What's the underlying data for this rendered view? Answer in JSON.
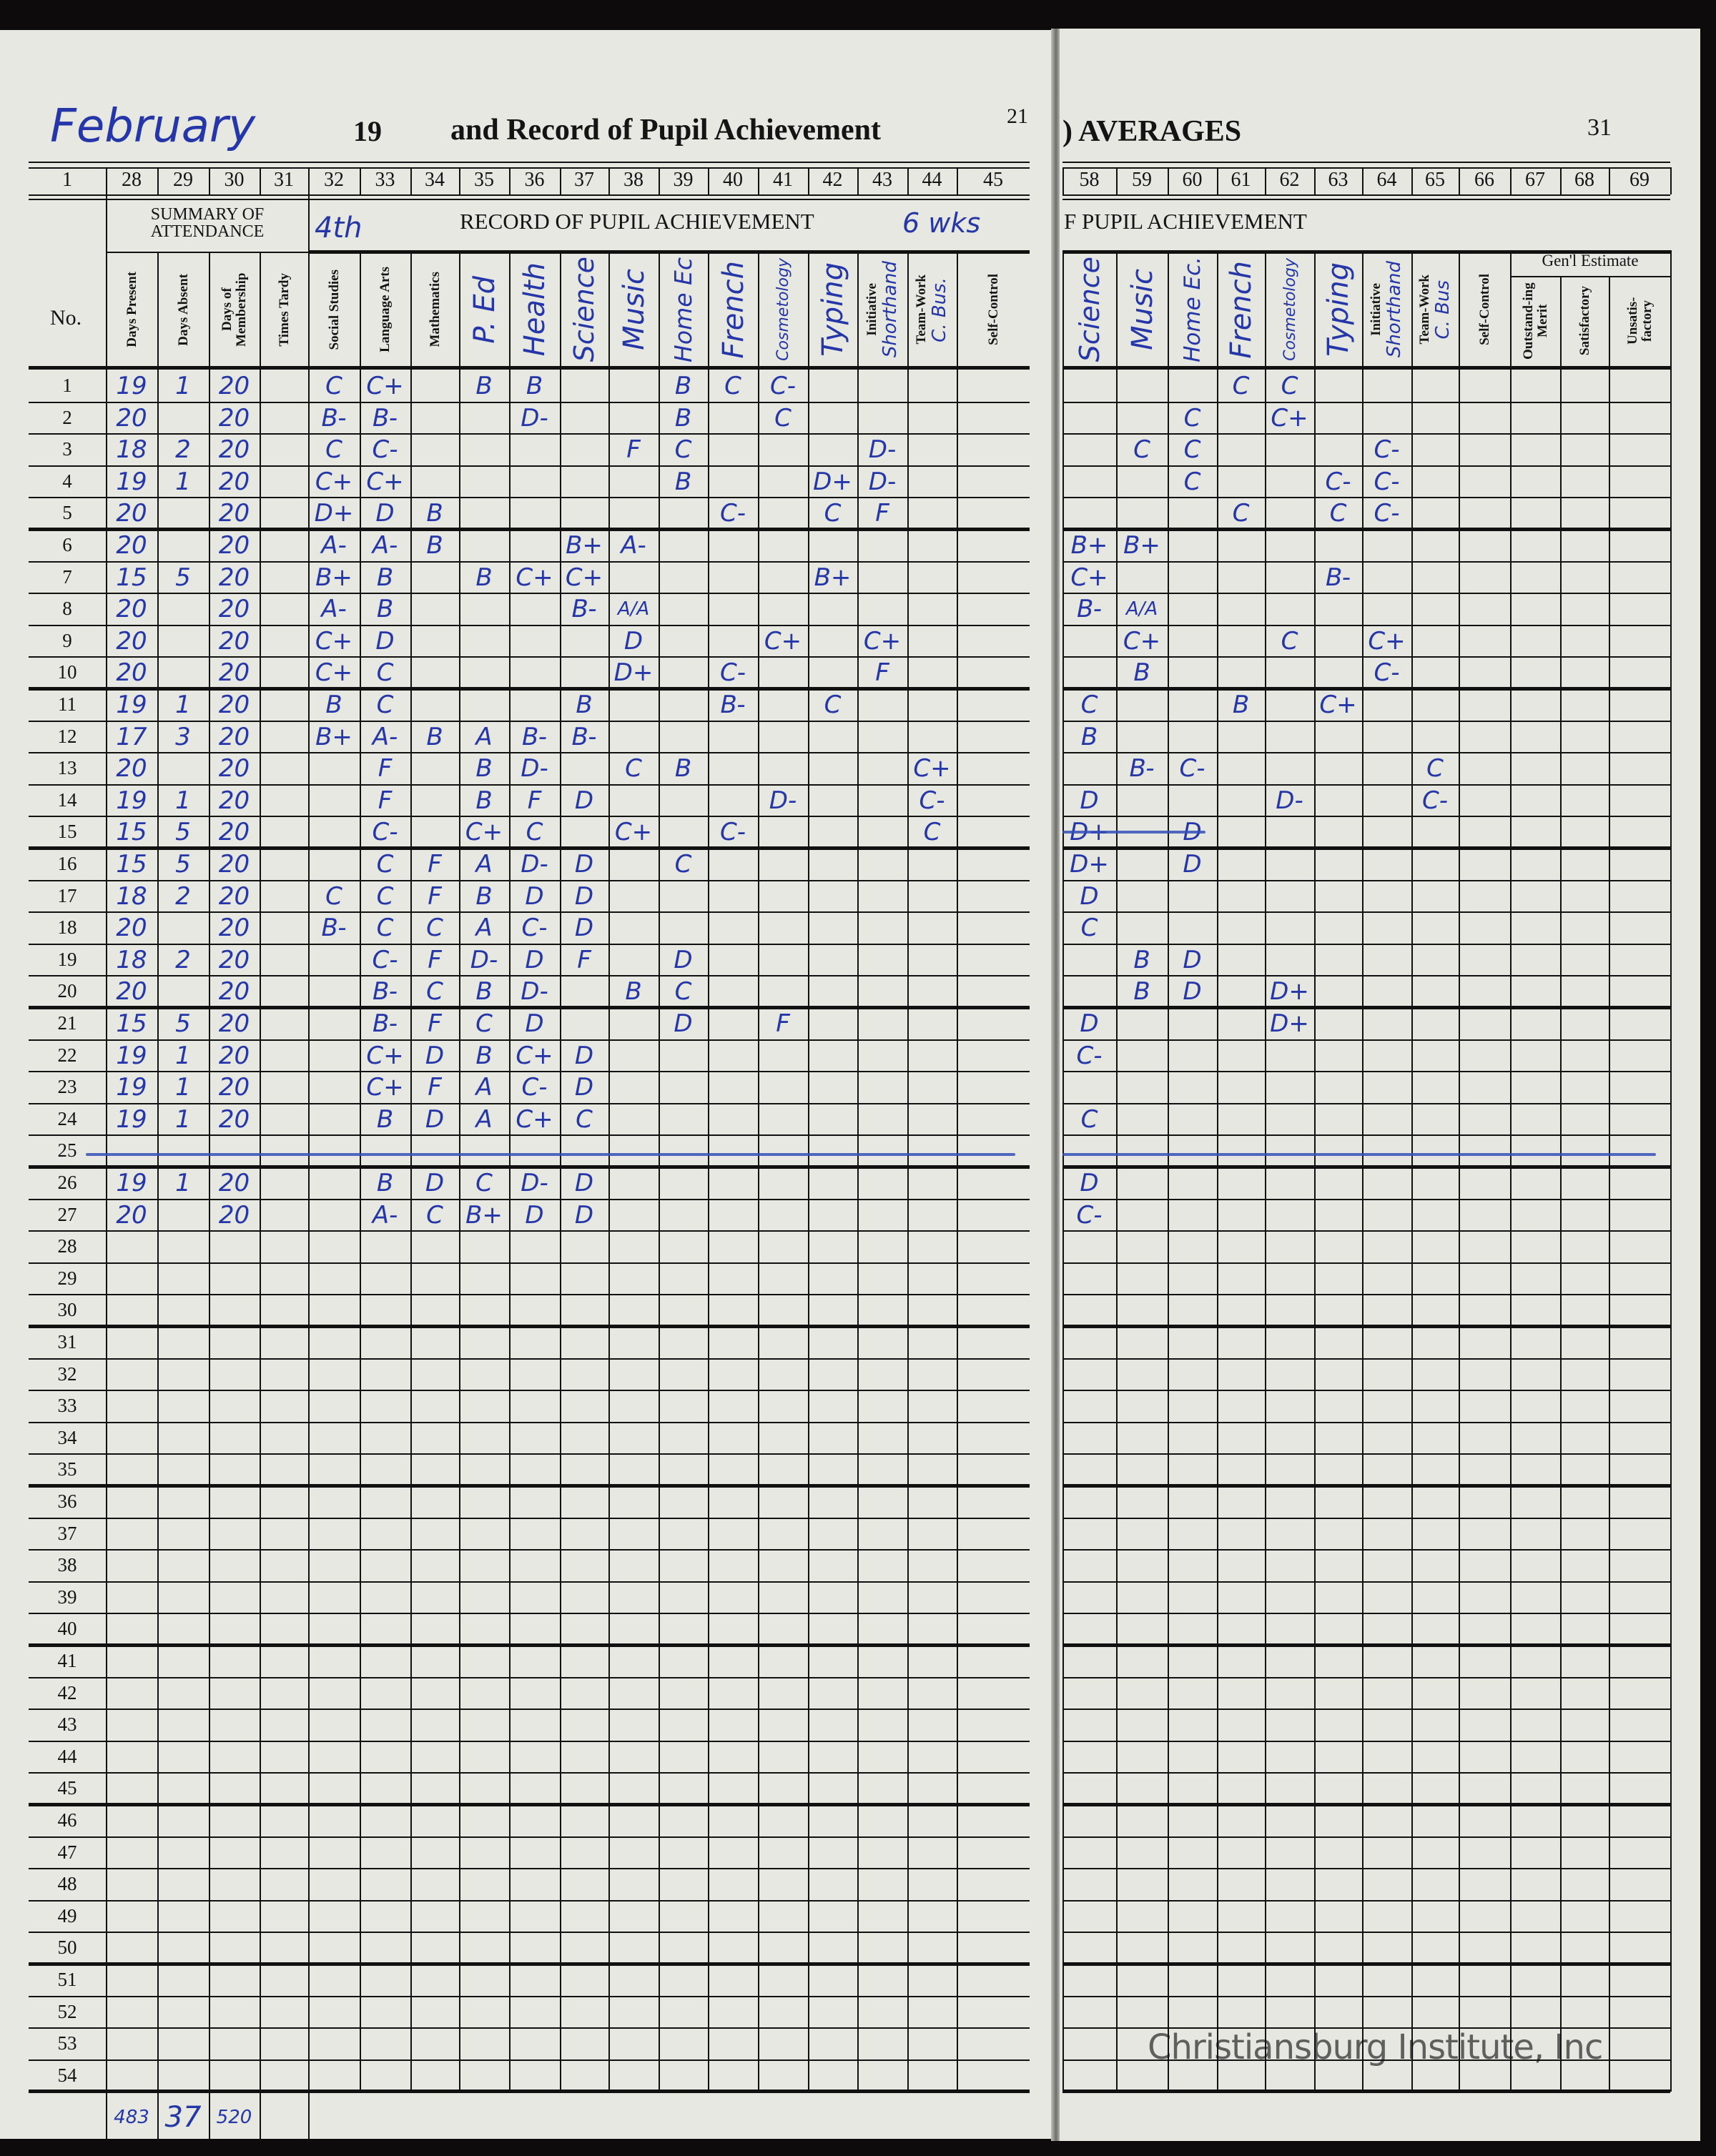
{
  "left_page": {
    "month_handwritten": "February",
    "year_prefix": "19",
    "title": "and Record of Pupil Achievement",
    "page_mark": "21",
    "column_numbers": [
      "1",
      "28",
      "29",
      "30",
      "31",
      "32",
      "33",
      "34",
      "35",
      "36",
      "37",
      "38",
      "39",
      "40",
      "41",
      "42",
      "43",
      "44",
      "45"
    ],
    "summary_header": "SUMMARY OF ATTENDANCE",
    "record_header": "RECORD OF PUPIL ACHIEVEMENT",
    "period_handwritten": "4th",
    "weeks_handwritten": "6 wks",
    "no_label": "No.",
    "columns": [
      {
        "printed": "Days Present"
      },
      {
        "printed": "Days Absent"
      },
      {
        "printed": "Days of Membership"
      },
      {
        "printed": "Times Tardy"
      },
      {
        "printed": "Social Studies"
      },
      {
        "printed": "Language Arts"
      },
      {
        "printed": "Mathematics"
      },
      {
        "handwritten": "P. Ed"
      },
      {
        "handwritten": "Health"
      },
      {
        "handwritten": "Science"
      },
      {
        "handwritten": "Music"
      },
      {
        "handwritten": "Home Ec"
      },
      {
        "handwritten": "French"
      },
      {
        "handwritten": "Cosmetology"
      },
      {
        "handwritten": "Typing"
      },
      {
        "printed": "Initiative",
        "handwritten": "Shorthand"
      },
      {
        "printed": "Team-Work",
        "handwritten": "C. Bus."
      },
      {
        "printed": "Self-Control"
      }
    ],
    "rows": [
      [
        "19",
        "1",
        "20",
        "",
        "C",
        "C+",
        "",
        "B",
        "B",
        "",
        "",
        "B",
        "C",
        "C-",
        "",
        "",
        "",
        ""
      ],
      [
        "20",
        "",
        "20",
        "",
        "B-",
        "B-",
        "",
        "",
        "D-",
        "",
        "",
        "B",
        "",
        "C",
        "",
        "",
        "",
        ""
      ],
      [
        "18",
        "2",
        "20",
        "",
        "C",
        "C-",
        "",
        "",
        "",
        "",
        "F",
        "C",
        "",
        "",
        "",
        "D-",
        "",
        ""
      ],
      [
        "19",
        "1",
        "20",
        "",
        "C+",
        "C+",
        "",
        "",
        "",
        "",
        "",
        "B",
        "",
        "",
        "D+",
        "D-",
        "",
        ""
      ],
      [
        "20",
        "",
        "20",
        "",
        "D+",
        "D",
        "B",
        "",
        "",
        "",
        "",
        "",
        "C-",
        "",
        "C",
        "F",
        "",
        ""
      ],
      [
        "20",
        "",
        "20",
        "",
        "A-",
        "A-",
        "B",
        "",
        "",
        "B+",
        "A-",
        "",
        "",
        "",
        "",
        "",
        "",
        ""
      ],
      [
        "15",
        "5",
        "20",
        "",
        "B+",
        "B",
        "",
        "B",
        "C+",
        "C+",
        "",
        "",
        "",
        "",
        "B+",
        "",
        "",
        ""
      ],
      [
        "20",
        "",
        "20",
        "",
        "A-",
        "B",
        "",
        "",
        "",
        "B-",
        "A/A",
        "",
        "",
        "",
        "",
        "",
        "",
        ""
      ],
      [
        "20",
        "",
        "20",
        "",
        "C+",
        "D",
        "",
        "",
        "",
        "",
        "D",
        "",
        "",
        "C+",
        "",
        "C+",
        "",
        ""
      ],
      [
        "20",
        "",
        "20",
        "",
        "C+",
        "C",
        "",
        "",
        "",
        "",
        "D+",
        "",
        "C-",
        "",
        "",
        "F",
        "",
        ""
      ],
      [
        "19",
        "1",
        "20",
        "",
        "B",
        "C",
        "",
        "",
        "",
        "B",
        "",
        "",
        "B-",
        "",
        "C",
        "",
        "",
        ""
      ],
      [
        "17",
        "3",
        "20",
        "",
        "B+",
        "A-",
        "B",
        "A",
        "B-",
        "B-",
        "",
        "",
        "",
        "",
        "",
        "",
        "",
        ""
      ],
      [
        "20",
        "",
        "20",
        "",
        "",
        "F",
        "",
        "B",
        "D-",
        "",
        "C",
        "B",
        "",
        "",
        "",
        "",
        "C+",
        ""
      ],
      [
        "19",
        "1",
        "20",
        "",
        "",
        "F",
        "",
        "B",
        "F",
        "D",
        "",
        "",
        "",
        "D-",
        "",
        "",
        "C-",
        ""
      ],
      [
        "15",
        "5",
        "20",
        "",
        "",
        "C-",
        "",
        "C+",
        "C",
        "",
        "C+",
        "",
        "C-",
        "",
        "",
        "",
        "C",
        ""
      ],
      [
        "15",
        "5",
        "20",
        "",
        "",
        "C",
        "F",
        "A",
        "D-",
        "D",
        "",
        "C",
        "",
        "",
        "",
        "",
        "",
        ""
      ],
      [
        "18",
        "2",
        "20",
        "",
        "C",
        "C",
        "F",
        "B",
        "D",
        "D",
        "",
        "",
        "",
        "",
        "",
        "",
        "",
        ""
      ],
      [
        "20",
        "",
        "20",
        "",
        "B-",
        "C",
        "C",
        "A",
        "C-",
        "D",
        "",
        "",
        "",
        "",
        "",
        "",
        "",
        ""
      ],
      [
        "18",
        "2",
        "20",
        "",
        "",
        "C-",
        "F",
        "D-",
        "D",
        "F",
        "",
        "D",
        "",
        "",
        "",
        "",
        "",
        ""
      ],
      [
        "20",
        "",
        "20",
        "",
        "",
        "B-",
        "C",
        "B",
        "D-",
        "",
        "B",
        "C",
        "",
        "",
        "",
        "",
        "",
        ""
      ],
      [
        "15",
        "5",
        "20",
        "",
        "",
        "B-",
        "F",
        "C",
        "D",
        "",
        "",
        "D",
        "",
        "F",
        "",
        "",
        "",
        ""
      ],
      [
        "19",
        "1",
        "20",
        "",
        "",
        "C+",
        "D",
        "B",
        "C+",
        "D",
        "",
        "",
        "",
        "",
        "",
        "",
        "",
        ""
      ],
      [
        "19",
        "1",
        "20",
        "",
        "",
        "C+",
        "F",
        "A",
        "C-",
        "D",
        "",
        "",
        "",
        "",
        "",
        "",
        "",
        ""
      ],
      [
        "19",
        "1",
        "20",
        "",
        "",
        "B",
        "D",
        "A",
        "C+",
        "C",
        "",
        "",
        "",
        "",
        "",
        "",
        "",
        ""
      ],
      [],
      [
        "19",
        "1",
        "20",
        "",
        "",
        "B",
        "D",
        "C",
        "D-",
        "D",
        "",
        "",
        "",
        "",
        "",
        "",
        "",
        ""
      ],
      [
        "20",
        "",
        "20",
        "",
        "",
        "A-",
        "C",
        "B+",
        "D",
        "D",
        "",
        "",
        "",
        "",
        "",
        "",
        "",
        ""
      ]
    ],
    "struck_rows": [
      25
    ],
    "totals": [
      "483",
      "37",
      "520"
    ]
  },
  "right_page": {
    "title": ") AVERAGES",
    "page_number": "31",
    "column_numbers": [
      "58",
      "59",
      "60",
      "61",
      "62",
      "63",
      "64",
      "65",
      "66",
      "67",
      "68",
      "69"
    ],
    "record_header": "F PUPIL ACHIEVEMENT",
    "gen_estimate_header": "Gen'l Estimate",
    "columns": [
      {
        "handwritten": "Science"
      },
      {
        "handwritten": "Music"
      },
      {
        "handwritten": "Home Ec."
      },
      {
        "handwritten": "French"
      },
      {
        "handwritten": "Cosmetology"
      },
      {
        "handwritten": "Typing"
      },
      {
        "printed": "Initiative",
        "handwritten": "Shorthand"
      },
      {
        "printed": "Team-Work",
        "handwritten": "C. Bus"
      },
      {
        "printed": "Self-Control"
      },
      {
        "printed": "Outstand-ing Merit"
      },
      {
        "printed": "Satisfactory"
      },
      {
        "printed": "Unsatis-factory"
      }
    ],
    "rows": [
      [
        "",
        "",
        "",
        "C",
        "C"
      ],
      [
        "",
        "",
        "C",
        "",
        "C+"
      ],
      [
        "",
        "C",
        "C",
        "",
        "",
        "",
        "C-"
      ],
      [
        "",
        "",
        "C",
        "",
        "",
        "C-",
        "C-"
      ],
      [
        "",
        "",
        "",
        "C",
        "",
        "C",
        "C-"
      ],
      [
        "B+",
        "B+"
      ],
      [
        "C+",
        "",
        "",
        "",
        "",
        "B-"
      ],
      [
        "B-",
        "A/A"
      ],
      [
        "",
        "C+",
        "",
        "",
        "C",
        "",
        "C+"
      ],
      [
        "",
        "B",
        "",
        "",
        "",
        "",
        "C-"
      ],
      [
        "C",
        "",
        "",
        "B",
        "",
        "C+"
      ],
      [
        "B"
      ],
      [
        "",
        "B-",
        "C-",
        "",
        "",
        "",
        "",
        "C"
      ],
      [
        "D",
        "",
        "",
        "",
        "D-",
        "",
        "",
        "C-"
      ],
      [
        "D+",
        "",
        "D"
      ],
      [
        "D+",
        "",
        "D"
      ],
      [
        "D"
      ],
      [
        "C"
      ],
      [
        "",
        "B",
        "D"
      ],
      [
        "",
        "B",
        "D",
        "",
        "D+"
      ],
      [
        "D",
        "",
        "",
        "",
        "D+"
      ],
      [
        "C-"
      ],
      [],
      [
        "C"
      ],
      [],
      [
        "D"
      ],
      [
        "C-"
      ]
    ],
    "struck_rows": [
      25
    ],
    "struck_cells_row15": true
  },
  "row_count": 54,
  "watermark": "Christiansburg Institute, Inc",
  "colors": {
    "ink_blue": "#2536a8",
    "paper": "#e7e8e1",
    "print": "#141414"
  }
}
